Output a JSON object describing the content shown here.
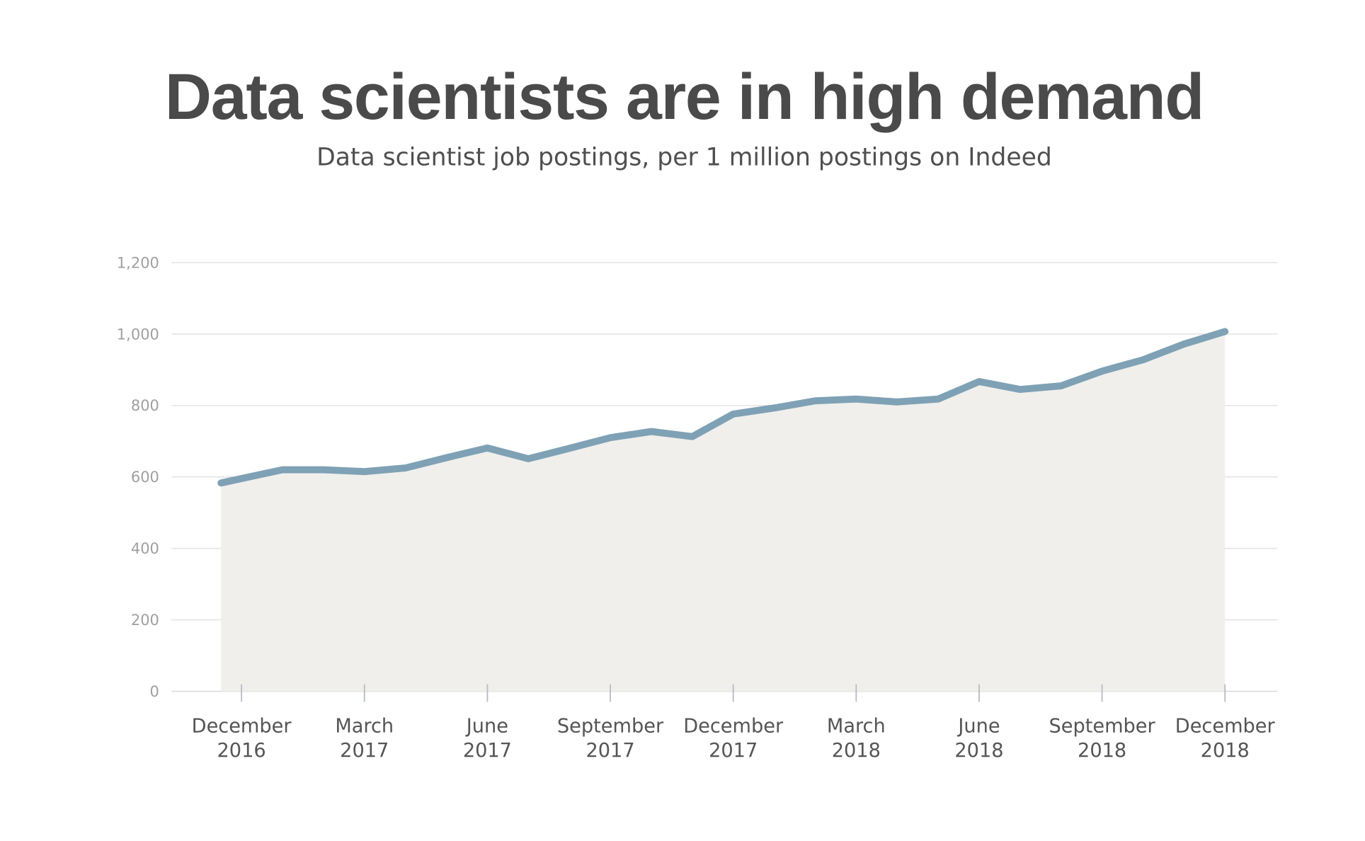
{
  "chart_data": {
    "type": "area",
    "title": "Data scientists are in high demand",
    "subtitle": "Data scientist job postings, per 1 million postings on Indeed",
    "xlabel": "",
    "ylabel": "",
    "ylim": [
      0,
      1200
    ],
    "yticks": [
      0,
      200,
      400,
      600,
      800,
      1000,
      1200
    ],
    "ytick_labels": [
      "0",
      "200",
      "400",
      "600",
      "800",
      "1,000",
      "1,200"
    ],
    "x_unit": "months since December 2016",
    "xlim": [
      -0.5,
      24
    ],
    "xticks": [
      {
        "x": 0,
        "line1": "December",
        "line2": "2016"
      },
      {
        "x": 3,
        "line1": "March",
        "line2": "2017"
      },
      {
        "x": 6,
        "line1": "June",
        "line2": "2017"
      },
      {
        "x": 9,
        "line1": "September",
        "line2": "2017"
      },
      {
        "x": 12,
        "line1": "December",
        "line2": "2017"
      },
      {
        "x": 15,
        "line1": "March",
        "line2": "2018"
      },
      {
        "x": 18,
        "line1": "June",
        "line2": "2018"
      },
      {
        "x": 21,
        "line1": "September",
        "line2": "2018"
      },
      {
        "x": 24,
        "line1": "December",
        "line2": "2018"
      }
    ],
    "grid": true,
    "series": [
      {
        "name": "Data scientist job postings per 1M",
        "x": [
          -0.5,
          1,
          2,
          3,
          4,
          5,
          6,
          7,
          8,
          9,
          10,
          11,
          12,
          13,
          14,
          15,
          16,
          17,
          18,
          19,
          20,
          21,
          22,
          23,
          24
        ],
        "values": [
          583,
          620,
          620,
          615,
          625,
          654,
          681,
          651,
          680,
          710,
          727,
          713,
          776,
          793,
          813,
          818,
          810,
          818,
          867,
          845,
          855,
          896,
          928,
          972,
          1007
        ]
      }
    ],
    "colors": {
      "line": "#7fa1b5",
      "fill": "#f0efeb",
      "grid": "#e4e4e4",
      "title": "#4a4a4a"
    }
  }
}
